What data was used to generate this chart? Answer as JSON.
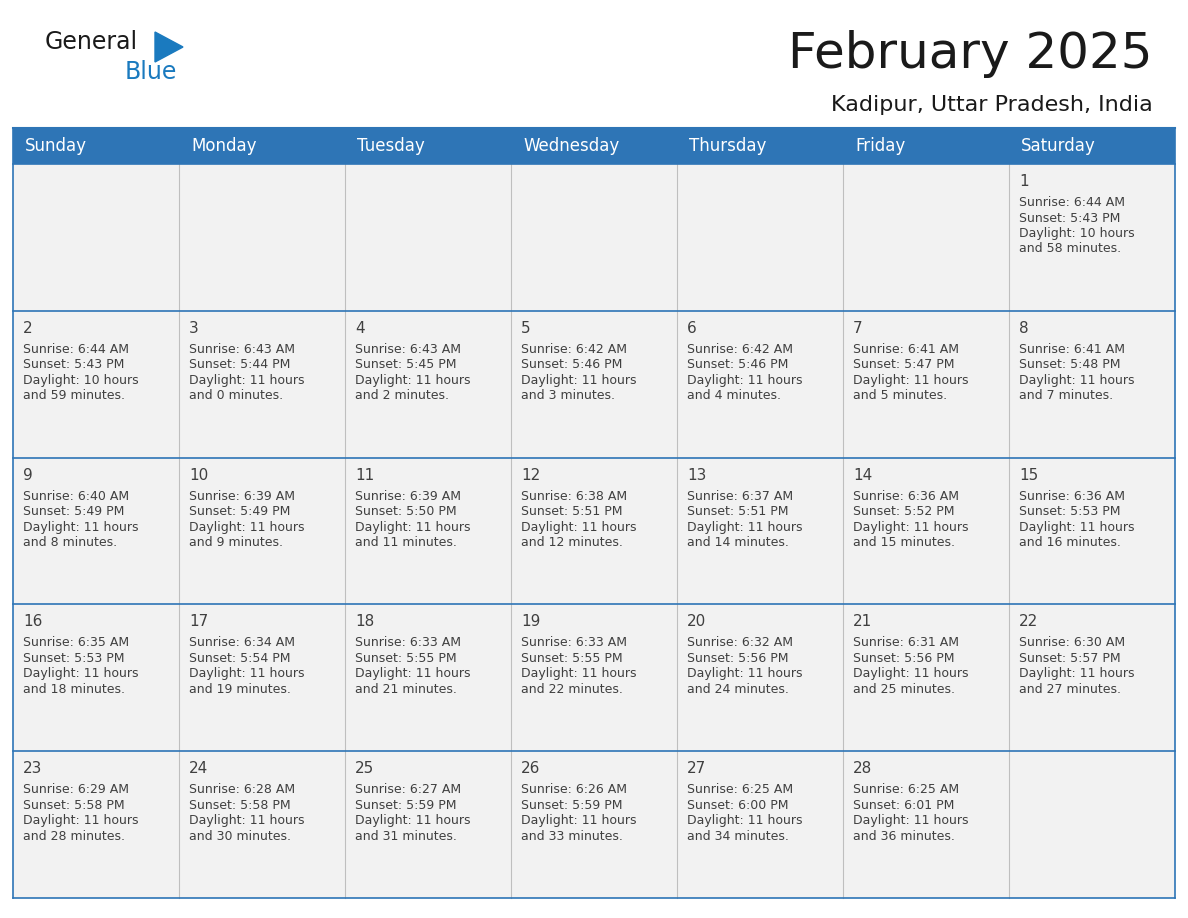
{
  "title": "February 2025",
  "subtitle": "Kadipur, Uttar Pradesh, India",
  "header_bg": "#2E75B6",
  "header_text": "#FFFFFF",
  "cell_bg": "#F2F2F2",
  "day_number_color": "#404040",
  "info_text_color": "#404040",
  "row_border_color": "#2E75B6",
  "col_border_color": "#BFBFBF",
  "days_of_week": [
    "Sunday",
    "Monday",
    "Tuesday",
    "Wednesday",
    "Thursday",
    "Friday",
    "Saturday"
  ],
  "calendar": [
    [
      null,
      null,
      null,
      null,
      null,
      null,
      {
        "day": "1",
        "sunrise": "6:44 AM",
        "sunset": "5:43 PM",
        "daylight_line1": "Daylight: 10 hours",
        "daylight_line2": "and 58 minutes."
      }
    ],
    [
      {
        "day": "2",
        "sunrise": "6:44 AM",
        "sunset": "5:43 PM",
        "daylight_line1": "Daylight: 10 hours",
        "daylight_line2": "and 59 minutes."
      },
      {
        "day": "3",
        "sunrise": "6:43 AM",
        "sunset": "5:44 PM",
        "daylight_line1": "Daylight: 11 hours",
        "daylight_line2": "and 0 minutes."
      },
      {
        "day": "4",
        "sunrise": "6:43 AM",
        "sunset": "5:45 PM",
        "daylight_line1": "Daylight: 11 hours",
        "daylight_line2": "and 2 minutes."
      },
      {
        "day": "5",
        "sunrise": "6:42 AM",
        "sunset": "5:46 PM",
        "daylight_line1": "Daylight: 11 hours",
        "daylight_line2": "and 3 minutes."
      },
      {
        "day": "6",
        "sunrise": "6:42 AM",
        "sunset": "5:46 PM",
        "daylight_line1": "Daylight: 11 hours",
        "daylight_line2": "and 4 minutes."
      },
      {
        "day": "7",
        "sunrise": "6:41 AM",
        "sunset": "5:47 PM",
        "daylight_line1": "Daylight: 11 hours",
        "daylight_line2": "and 5 minutes."
      },
      {
        "day": "8",
        "sunrise": "6:41 AM",
        "sunset": "5:48 PM",
        "daylight_line1": "Daylight: 11 hours",
        "daylight_line2": "and 7 minutes."
      }
    ],
    [
      {
        "day": "9",
        "sunrise": "6:40 AM",
        "sunset": "5:49 PM",
        "daylight_line1": "Daylight: 11 hours",
        "daylight_line2": "and 8 minutes."
      },
      {
        "day": "10",
        "sunrise": "6:39 AM",
        "sunset": "5:49 PM",
        "daylight_line1": "Daylight: 11 hours",
        "daylight_line2": "and 9 minutes."
      },
      {
        "day": "11",
        "sunrise": "6:39 AM",
        "sunset": "5:50 PM",
        "daylight_line1": "Daylight: 11 hours",
        "daylight_line2": "and 11 minutes."
      },
      {
        "day": "12",
        "sunrise": "6:38 AM",
        "sunset": "5:51 PM",
        "daylight_line1": "Daylight: 11 hours",
        "daylight_line2": "and 12 minutes."
      },
      {
        "day": "13",
        "sunrise": "6:37 AM",
        "sunset": "5:51 PM",
        "daylight_line1": "Daylight: 11 hours",
        "daylight_line2": "and 14 minutes."
      },
      {
        "day": "14",
        "sunrise": "6:36 AM",
        "sunset": "5:52 PM",
        "daylight_line1": "Daylight: 11 hours",
        "daylight_line2": "and 15 minutes."
      },
      {
        "day": "15",
        "sunrise": "6:36 AM",
        "sunset": "5:53 PM",
        "daylight_line1": "Daylight: 11 hours",
        "daylight_line2": "and 16 minutes."
      }
    ],
    [
      {
        "day": "16",
        "sunrise": "6:35 AM",
        "sunset": "5:53 PM",
        "daylight_line1": "Daylight: 11 hours",
        "daylight_line2": "and 18 minutes."
      },
      {
        "day": "17",
        "sunrise": "6:34 AM",
        "sunset": "5:54 PM",
        "daylight_line1": "Daylight: 11 hours",
        "daylight_line2": "and 19 minutes."
      },
      {
        "day": "18",
        "sunrise": "6:33 AM",
        "sunset": "5:55 PM",
        "daylight_line1": "Daylight: 11 hours",
        "daylight_line2": "and 21 minutes."
      },
      {
        "day": "19",
        "sunrise": "6:33 AM",
        "sunset": "5:55 PM",
        "daylight_line1": "Daylight: 11 hours",
        "daylight_line2": "and 22 minutes."
      },
      {
        "day": "20",
        "sunrise": "6:32 AM",
        "sunset": "5:56 PM",
        "daylight_line1": "Daylight: 11 hours",
        "daylight_line2": "and 24 minutes."
      },
      {
        "day": "21",
        "sunrise": "6:31 AM",
        "sunset": "5:56 PM",
        "daylight_line1": "Daylight: 11 hours",
        "daylight_line2": "and 25 minutes."
      },
      {
        "day": "22",
        "sunrise": "6:30 AM",
        "sunset": "5:57 PM",
        "daylight_line1": "Daylight: 11 hours",
        "daylight_line2": "and 27 minutes."
      }
    ],
    [
      {
        "day": "23",
        "sunrise": "6:29 AM",
        "sunset": "5:58 PM",
        "daylight_line1": "Daylight: 11 hours",
        "daylight_line2": "and 28 minutes."
      },
      {
        "day": "24",
        "sunrise": "6:28 AM",
        "sunset": "5:58 PM",
        "daylight_line1": "Daylight: 11 hours",
        "daylight_line2": "and 30 minutes."
      },
      {
        "day": "25",
        "sunrise": "6:27 AM",
        "sunset": "5:59 PM",
        "daylight_line1": "Daylight: 11 hours",
        "daylight_line2": "and 31 minutes."
      },
      {
        "day": "26",
        "sunrise": "6:26 AM",
        "sunset": "5:59 PM",
        "daylight_line1": "Daylight: 11 hours",
        "daylight_line2": "and 33 minutes."
      },
      {
        "day": "27",
        "sunrise": "6:25 AM",
        "sunset": "6:00 PM",
        "daylight_line1": "Daylight: 11 hours",
        "daylight_line2": "and 34 minutes."
      },
      {
        "day": "28",
        "sunrise": "6:25 AM",
        "sunset": "6:01 PM",
        "daylight_line1": "Daylight: 11 hours",
        "daylight_line2": "and 36 minutes."
      },
      null
    ]
  ],
  "logo_general_color": "#1a1a1a",
  "logo_blue_color": "#1a7abf",
  "logo_triangle_color": "#1a7abf",
  "title_fontsize": 36,
  "subtitle_fontsize": 16,
  "header_fontsize": 12,
  "day_num_fontsize": 11,
  "info_fontsize": 9
}
